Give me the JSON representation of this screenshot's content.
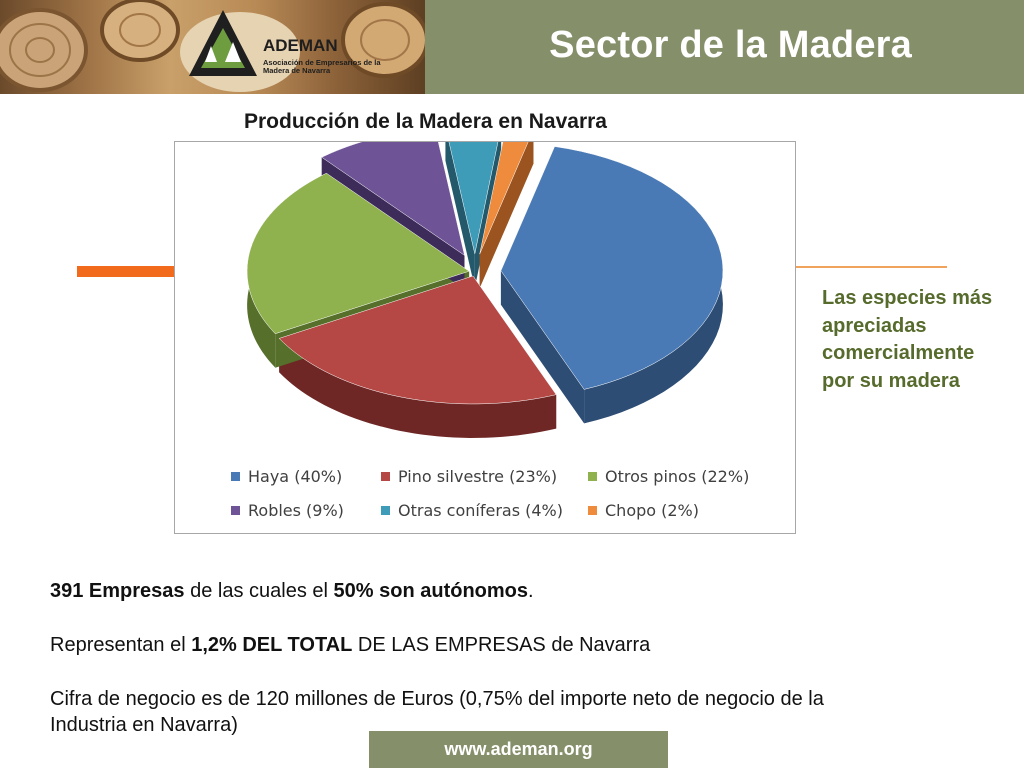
{
  "header": {
    "title": "Sector de la Madera",
    "logo_name": "ADEMAN",
    "logo_sub": "Asociación de Empresarios de la Madera de Navarra"
  },
  "side_note": "Las especies más apreciadas comercialmente por su madera",
  "stats": {
    "l1_a": "391 Empresas",
    "l1_b": " de las cuales el ",
    "l1_c": "50% son autónomos",
    "l1_d": ".",
    "l2_a": "Representan el ",
    "l2_b": "1,2% DEL TOTAL",
    "l2_c": " DE LAS EMPRESAS de Navarra",
    "l3": "Cifra de negocio es de 120 millones de Euros (0,75% del importe neto de negocio de la",
    "l4": "Industria en Navarra)"
  },
  "footer": {
    "url": "www.ademan.org"
  },
  "colors": {
    "header_band": "#85906a",
    "accent_orange": "#f26a1b",
    "side_note": "#566b2c"
  },
  "chart_data": {
    "type": "pie",
    "title": "Producción de la Madera en Navarra",
    "legend_position": "bottom",
    "series": [
      {
        "name": "Haya (40%)",
        "value": 40,
        "color": "#4a7ab5",
        "dark": "#2d4d75",
        "exploded": true
      },
      {
        "name": "Pino silvestre (23%)",
        "value": 23,
        "color": "#b54845",
        "dark": "#6e2725",
        "exploded": false
      },
      {
        "name": "Otros pinos (22%)",
        "value": 22,
        "color": "#8fb14e",
        "dark": "#56702b",
        "exploded": false
      },
      {
        "name": "Robles (9%)",
        "value": 9,
        "color": "#6e5396",
        "dark": "#3d2c5a",
        "exploded": true
      },
      {
        "name": "Otras coníferas (4%)",
        "value": 4,
        "color": "#3f9cb8",
        "dark": "#23596b",
        "exploded": true
      },
      {
        "name": "Chopo (2%)",
        "value": 2,
        "color": "#ee8b3c",
        "dark": "#9b5420",
        "exploded": true
      }
    ]
  }
}
